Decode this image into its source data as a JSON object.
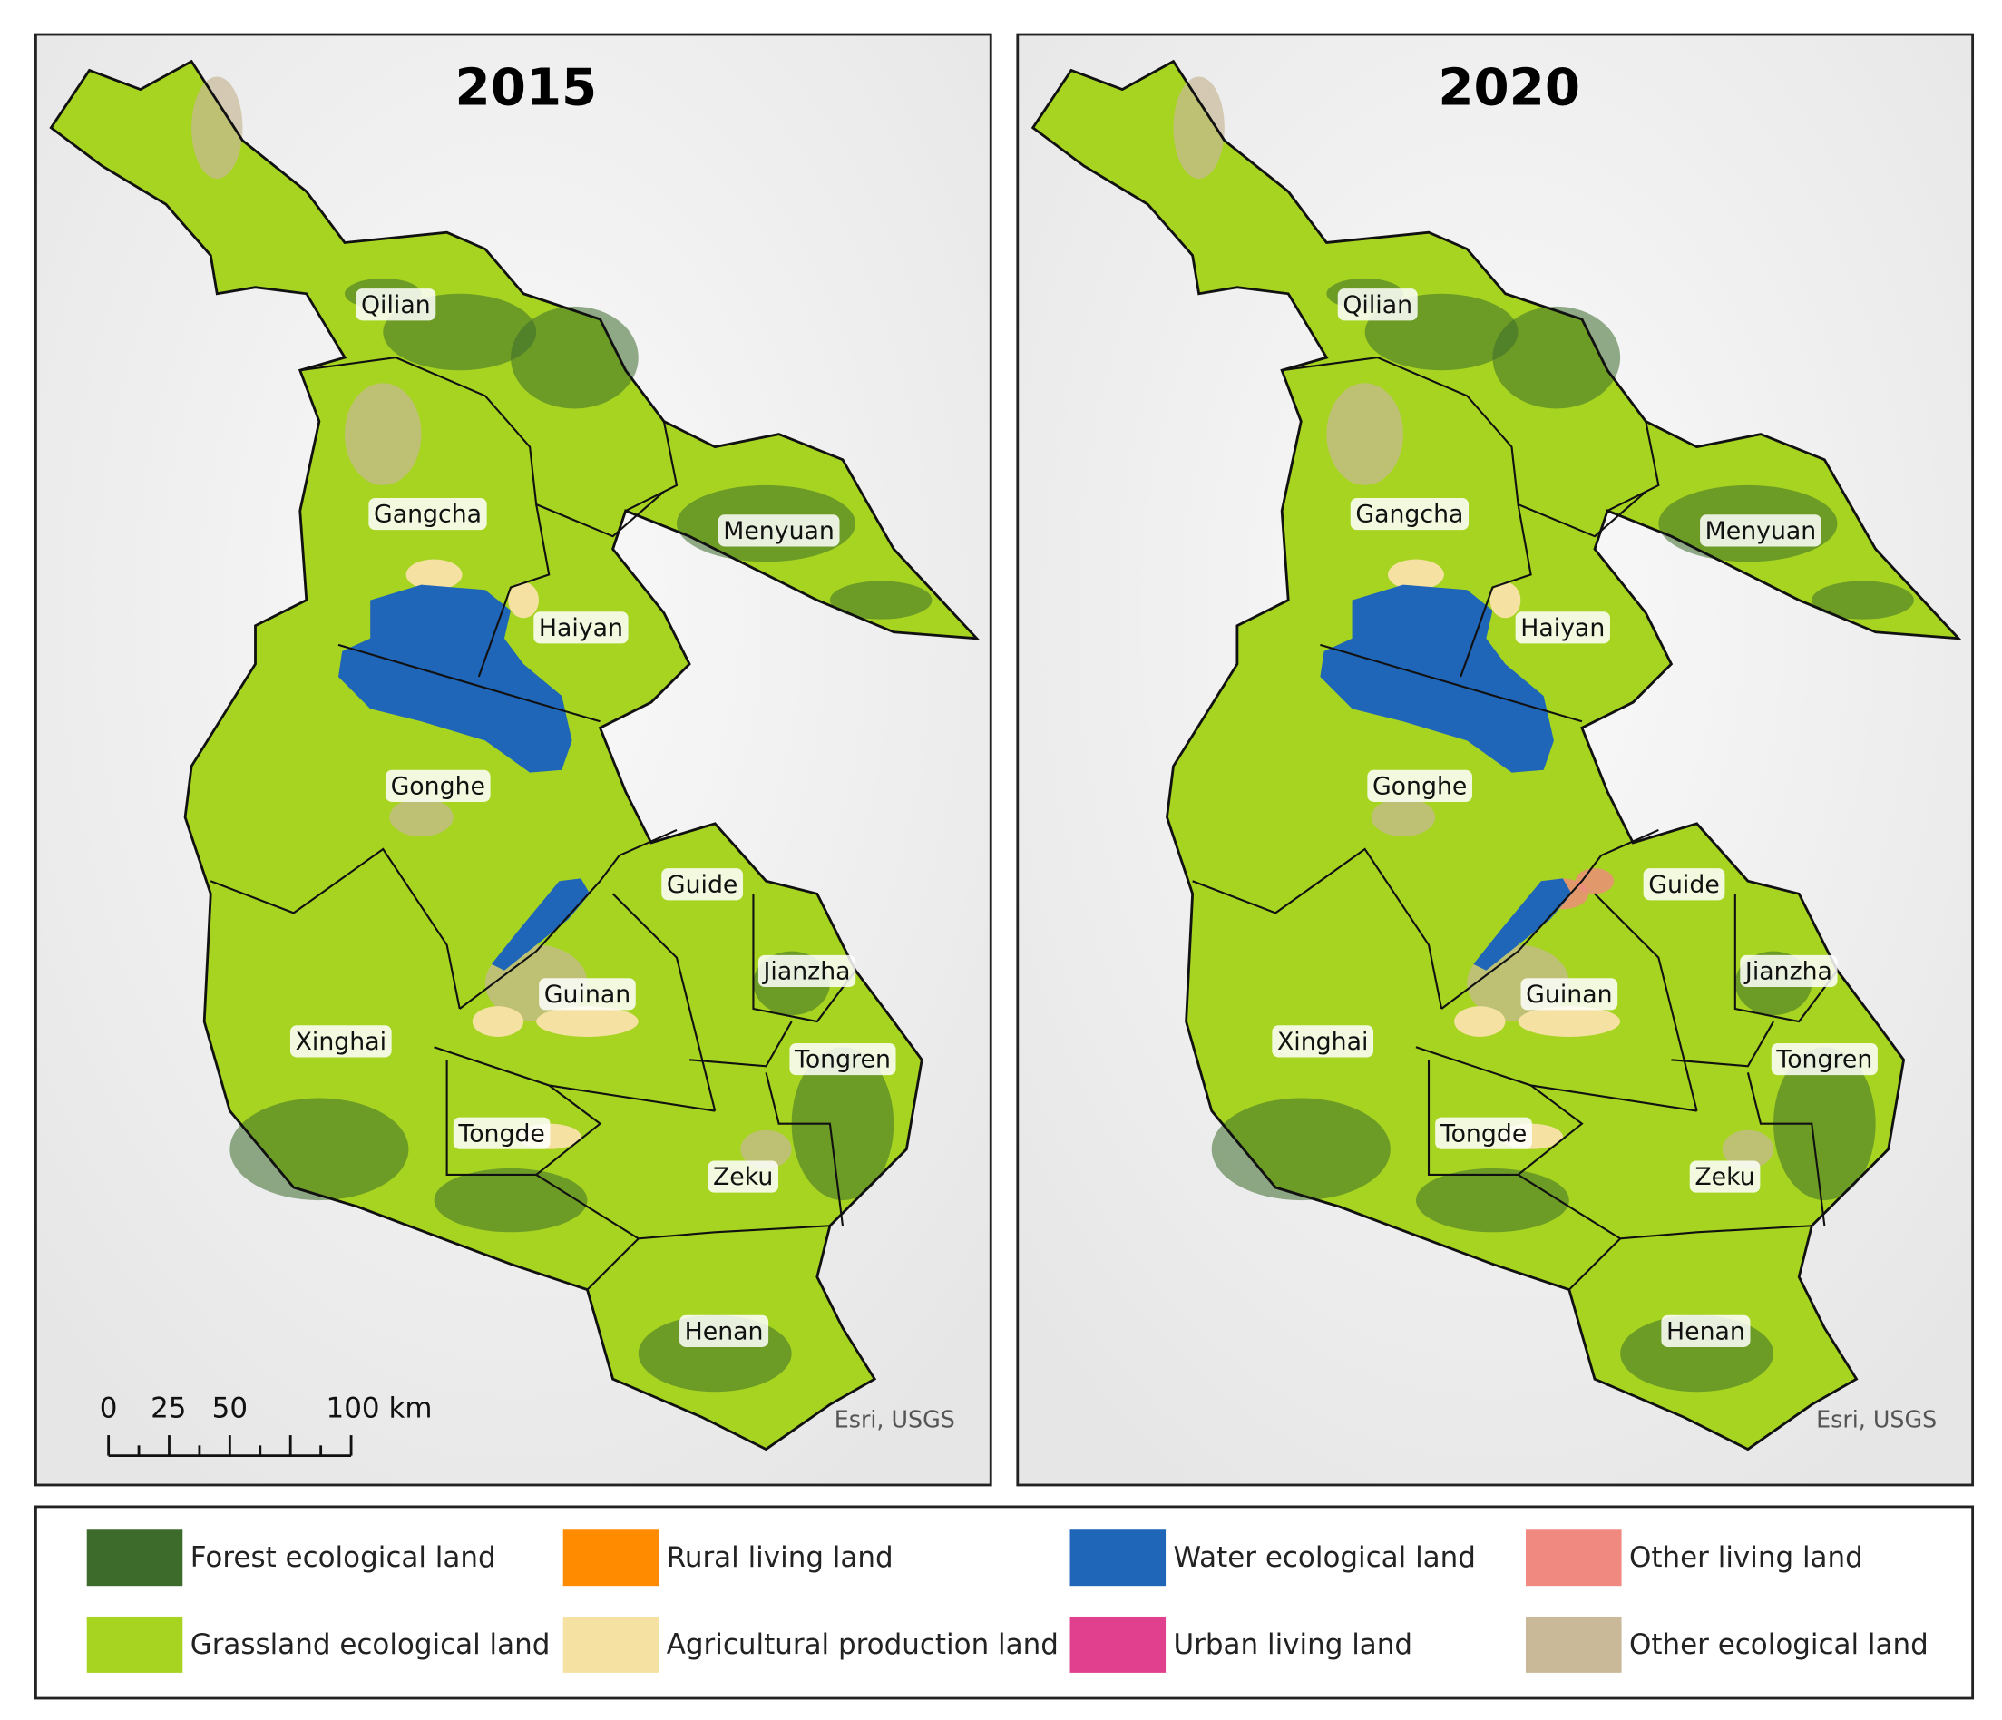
{
  "panels": [
    {
      "title": "2015",
      "labels": [
        "Qilian",
        "Gangcha",
        "Menyuan",
        "Haiyan",
        "Gonghe",
        "Guide",
        "Jianzha",
        "Guinan",
        "Xinghai",
        "Tongren",
        "Tongde",
        "Zeku",
        "Henan"
      ],
      "scale_bar": [
        "0",
        "25",
        "50",
        "100 km"
      ],
      "attribution": "Esri, USGS"
    },
    {
      "title": "2020",
      "labels": [
        "Qilian",
        "Gangcha",
        "Menyuan",
        "Haiyan",
        "Gonghe",
        "Guide",
        "Jianzha",
        "Guinan",
        "Xinghai",
        "Tongren",
        "Tongde",
        "Zeku",
        "Henan"
      ],
      "attribution": "Esri, USGS"
    }
  ],
  "legend": [
    {
      "label": "Forest ecological land",
      "color": "#3d6b2c"
    },
    {
      "label": "Rural living land",
      "color": "#ff8c00"
    },
    {
      "label": "Water ecological land",
      "color": "#1f65b8"
    },
    {
      "label": "Other living land",
      "color": "#f08a80"
    },
    {
      "label": "Grassland ecological land",
      "color": "#a6d421"
    },
    {
      "label": "Agricultural production land",
      "color": "#f5e1a2"
    },
    {
      "label": "Urban living land",
      "color": "#e0408e"
    },
    {
      "label": "Other ecological land",
      "color": "#c9b998"
    }
  ]
}
